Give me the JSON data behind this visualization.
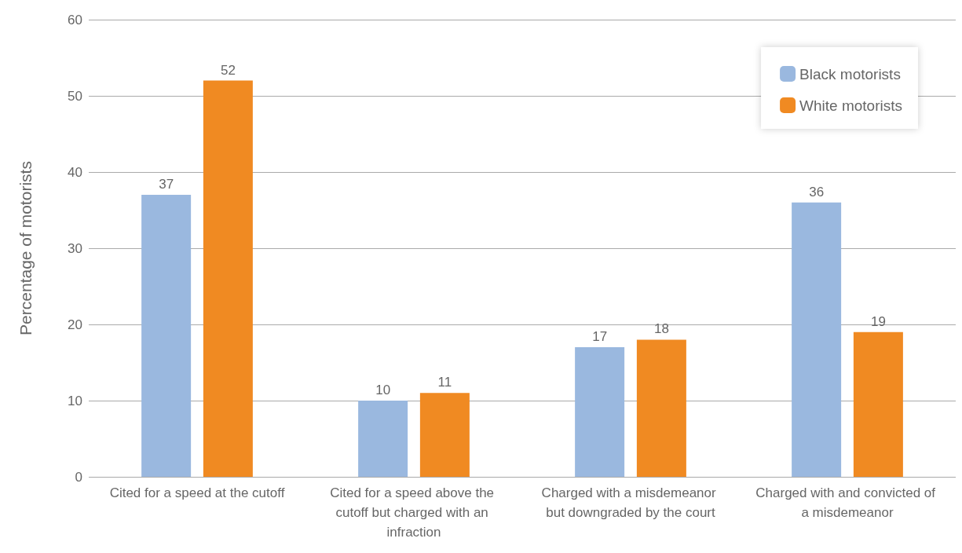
{
  "chart_data": {
    "type": "bar",
    "ylabel": "Percentage of motorists",
    "categories": [
      "Cited for a speed at the cutoff",
      "Cited for a speed above the cutoff but charged with an infraction",
      "Charged with a misdemeanor but downgraded by the court",
      "Charged with and convicted of a misdemeanor"
    ],
    "series": [
      {
        "name": "Black motorists",
        "color": "#9ab8df",
        "values": [
          37,
          10,
          17,
          36
        ]
      },
      {
        "name": "White motorists",
        "color": "#f08a22",
        "values": [
          52,
          11,
          18,
          19
        ]
      }
    ],
    "ylim": [
      0,
      60
    ],
    "yticks": [
      0,
      10,
      20,
      30,
      40,
      50,
      60
    ],
    "grid": "y",
    "legend": "top right",
    "data_labels": true
  }
}
